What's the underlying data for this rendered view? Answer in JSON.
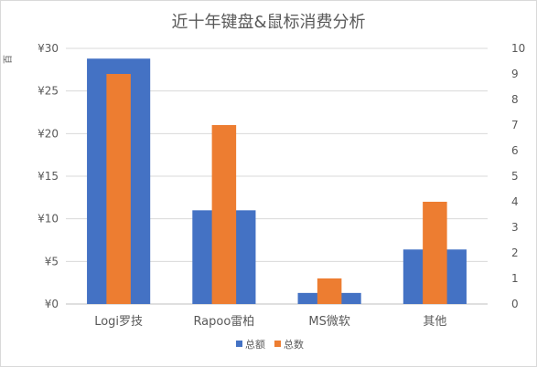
{
  "chart_data": {
    "type": "bar",
    "title": "近十年键盘&鼠标消费分析",
    "categories": [
      "Logi罗技",
      "Rapoo雷柏",
      "MS微软",
      "其他"
    ],
    "series": [
      {
        "name": "总额",
        "axis": "left",
        "color": "#4472C4",
        "values": [
          28.8,
          11,
          1.3,
          6.4
        ]
      },
      {
        "name": "总数",
        "axis": "right",
        "color": "#ED7D31",
        "values": [
          9,
          7,
          1,
          4
        ]
      }
    ],
    "yleft": {
      "ylim": [
        0,
        30
      ],
      "ticks": [
        "¥0",
        "¥5",
        "¥10",
        "¥15",
        "¥20",
        "¥25",
        "¥30"
      ],
      "unit_label": "百"
    },
    "yright": {
      "ylim": [
        0,
        10
      ],
      "ticks": [
        "0",
        "1",
        "2",
        "3",
        "4",
        "5",
        "6",
        "7",
        "8",
        "9",
        "10"
      ]
    },
    "grid": true,
    "legend": "bottom"
  }
}
